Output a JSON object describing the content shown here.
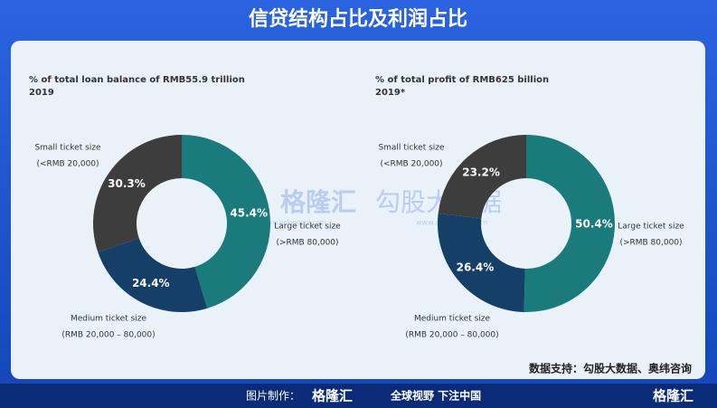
{
  "header": {
    "title": "信贷结构占比及利润占比"
  },
  "chart_data": [
    {
      "type": "donut",
      "title": "% of total loan balance of RMB55.9 trillion",
      "subtitle": "2019",
      "categories": [
        "Large ticket size",
        "Medium ticket size",
        "Small ticket size"
      ],
      "category_ranges": [
        "(>RMB 80,000)",
        "(RMB 20,000 – 80,000)",
        "(<RMB 20,000)"
      ],
      "values": [
        45.4,
        24.4,
        30.3
      ],
      "value_labels": [
        "45.4%",
        "24.4%",
        "30.3%"
      ],
      "colors": [
        "#1b7b7c",
        "#163f68",
        "#3d3d3d"
      ]
    },
    {
      "type": "donut",
      "title": "% of total profit of RMB625 billion",
      "subtitle": "2019*",
      "categories": [
        "Large ticket size",
        "Medium ticket size",
        "Small ticket size"
      ],
      "category_ranges": [
        "(>RMB 80,000)",
        "(RMB 20,000 – 80,000)",
        "(<RMB 20,000)"
      ],
      "values": [
        50.4,
        26.4,
        23.2
      ],
      "value_labels": [
        "50.4%",
        "26.4%",
        "23.2%"
      ],
      "colors": [
        "#1b7b7c",
        "#163f68",
        "#3d3d3d"
      ]
    }
  ],
  "source": "数据支持：勾股大数据、奥纬咨询",
  "watermark": {
    "brand": "格隆汇",
    "brand_url": "www.gelonghui.com",
    "partner": "勾股大数据",
    "partner_url": "www.gogudata.com"
  },
  "footer": {
    "made_by": "图片制作：",
    "logo": "格隆汇",
    "slogan": "全球视野 下注中国",
    "corner_logo": "格隆汇"
  }
}
